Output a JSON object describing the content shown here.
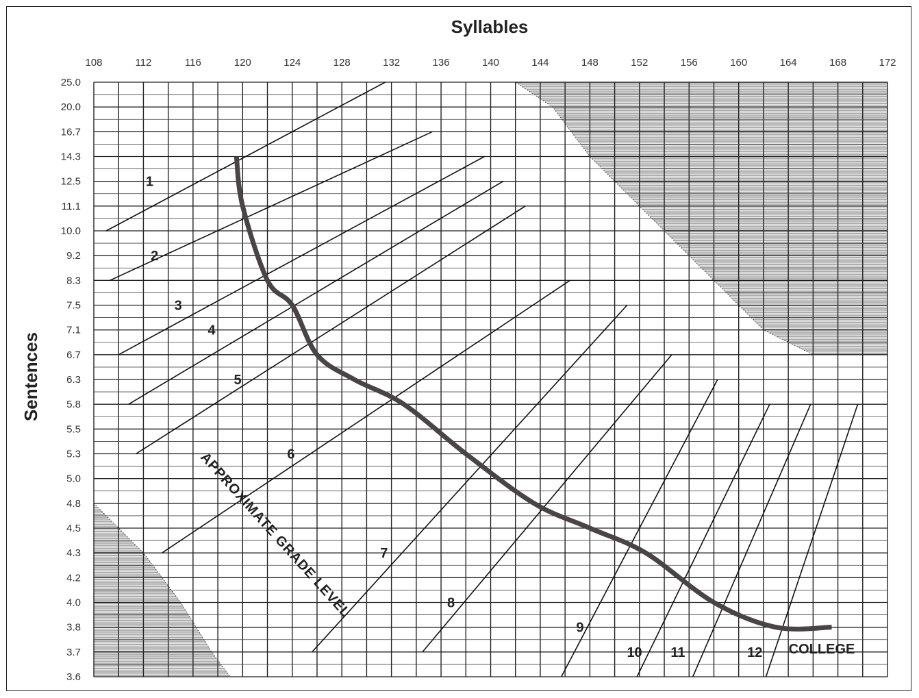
{
  "chart_data": {
    "type": "line",
    "xlabel": "Syllables",
    "ylabel": "Sentences",
    "x_ticks": [
      108,
      112,
      116,
      120,
      124,
      128,
      132,
      136,
      140,
      144,
      148,
      152,
      156,
      160,
      164,
      168,
      172
    ],
    "y_ticks": [
      "25.0",
      "20.0",
      "16.7",
      "14.3",
      "12.5",
      "11.1",
      "10.0",
      "9.2",
      "8.3",
      "7.5",
      "7.1",
      "6.7",
      "6.3",
      "5.8",
      "5.5",
      "5.3",
      "5.0",
      "4.8",
      "4.5",
      "4.3",
      "4.2",
      "4.0",
      "3.8",
      "3.7",
      "3.6"
    ],
    "xlim": [
      108,
      172
    ],
    "grid": true,
    "curve_label": "APPROXIMATE GRADE LEVEL",
    "grade_lines": [
      {
        "label": "1",
        "p1": {
          "x": 109,
          "y": "10.0"
        },
        "p2": {
          "x": 131.5,
          "y": "25.0"
        },
        "label_at": {
          "x": 112.5,
          "y": "12.5"
        }
      },
      {
        "label": "2",
        "p1": {
          "x": 109.3,
          "y": "8.3"
        },
        "p2": {
          "x": 135.3,
          "y": "16.7"
        },
        "label_at": {
          "x": 112.9,
          "y": "9.2"
        }
      },
      {
        "label": "3",
        "p1": {
          "x": 110,
          "y": "6.7"
        },
        "p2": {
          "x": 139.5,
          "y": "14.3"
        },
        "label_at": {
          "x": 114.8,
          "y": "7.5"
        }
      },
      {
        "label": "4",
        "p1": {
          "x": 110.8,
          "y": "5.8"
        },
        "p2": {
          "x": 141,
          "y": "12.5"
        },
        "label_at": {
          "x": 117.5,
          "y": "7.1"
        }
      },
      {
        "label": "5",
        "p1": {
          "x": 111.4,
          "y": "5.3"
        },
        "p2": {
          "x": 142.8,
          "y": "11.1"
        },
        "label_at": {
          "x": 119.6,
          "y": "6.3"
        }
      },
      {
        "label": "6",
        "p1": {
          "x": 113.5,
          "y": "4.3"
        },
        "p2": {
          "x": 146.4,
          "y": "8.3"
        },
        "label_at": {
          "x": 123.9,
          "y": "5.3"
        }
      },
      {
        "label": "7",
        "p1": {
          "x": 125.6,
          "y": "3.7"
        },
        "p2": {
          "x": 151,
          "y": "7.5"
        },
        "label_at": {
          "x": 131.4,
          "y": "4.3"
        }
      },
      {
        "label": "8",
        "p1": {
          "x": 134.5,
          "y": "3.7"
        },
        "p2": {
          "x": 154.6,
          "y": "6.7"
        },
        "label_at": {
          "x": 136.8,
          "y": "4.0"
        }
      },
      {
        "label": "9",
        "p1": {
          "x": 145.7,
          "y": "3.6"
        },
        "p2": {
          "x": 158.3,
          "y": "6.3"
        },
        "label_at": {
          "x": 147.2,
          "y": "3.8"
        }
      },
      {
        "label": "10",
        "p1": {
          "x": 151.8,
          "y": "3.6"
        },
        "p2": {
          "x": 162.5,
          "y": "5.8"
        },
        "label_at": {
          "x": 151.6,
          "y": "3.7"
        }
      },
      {
        "label": "11",
        "p1": {
          "x": 156.3,
          "y": "3.6"
        },
        "p2": {
          "x": 165.8,
          "y": "5.8"
        },
        "label_at": {
          "x": 155.1,
          "y": "3.7"
        }
      },
      {
        "label": "12",
        "p1": {
          "x": 162.2,
          "y": "3.6"
        },
        "p2": {
          "x": 169.6,
          "y": "5.8"
        },
        "label_at": {
          "x": 161.3,
          "y": "3.7"
        }
      }
    ],
    "college_label": "COLLEGE",
    "college_label_at": {
      "x": 166.7,
      "y": "3.7"
    },
    "grade_curve": [
      {
        "x": 119.5,
        "y": "14.3"
      },
      {
        "x": 120.0,
        "y": "11.1"
      },
      {
        "x": 122.0,
        "y": "8.3"
      },
      {
        "x": 124.0,
        "y": "7.5"
      },
      {
        "x": 126.0,
        "y": "6.7"
      },
      {
        "x": 129.0,
        "y": "6.3"
      },
      {
        "x": 133.0,
        "y": "5.8"
      },
      {
        "x": 138.0,
        "y": "5.3"
      },
      {
        "x": 143.5,
        "y": "4.8"
      },
      {
        "x": 148.0,
        "y": "4.5"
      },
      {
        "x": 152.5,
        "y": "4.3"
      },
      {
        "x": 158.0,
        "y": "4.0"
      },
      {
        "x": 163.0,
        "y": "3.8"
      },
      {
        "x": 167.5,
        "y": "3.8"
      }
    ],
    "invalid_regions": [
      {
        "name": "upper-right",
        "boundary": [
          {
            "x": 142,
            "y": "25.0"
          },
          {
            "x": 145,
            "y": "20.0"
          },
          {
            "x": 148,
            "y": "14.3"
          },
          {
            "x": 152,
            "y": "11.1"
          },
          {
            "x": 156,
            "y": "9.2"
          },
          {
            "x": 162,
            "y": "7.1"
          },
          {
            "x": 166,
            "y": "6.7"
          },
          {
            "x": 172,
            "y": "6.7"
          }
        ]
      },
      {
        "name": "lower-left",
        "boundary": [
          {
            "x": 108,
            "y": "4.8"
          },
          {
            "x": 110,
            "y": "4.5"
          },
          {
            "x": 112,
            "y": "4.3"
          },
          {
            "x": 115,
            "y": "4.0"
          },
          {
            "x": 117.5,
            "y": "3.7"
          },
          {
            "x": 119,
            "y": "3.6"
          }
        ]
      }
    ]
  }
}
